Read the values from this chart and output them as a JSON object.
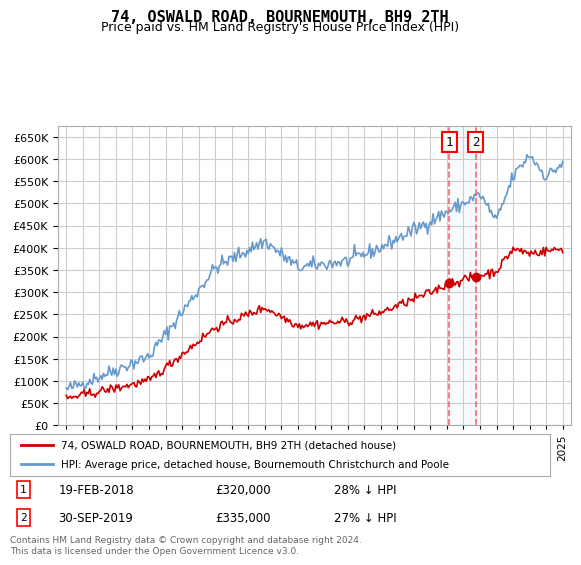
{
  "title": "74, OSWALD ROAD, BOURNEMOUTH, BH9 2TH",
  "subtitle": "Price paid vs. HM Land Registry's House Price Index (HPI)",
  "legend_line1": "74, OSWALD ROAD, BOURNEMOUTH, BH9 2TH (detached house)",
  "legend_line2": "HPI: Average price, detached house, Bournemouth Christchurch and Poole",
  "footer": "Contains HM Land Registry data © Crown copyright and database right 2024.\nThis data is licensed under the Open Government Licence v3.0.",
  "transactions": [
    {
      "label": "1",
      "date": "19-FEB-2018",
      "price": "£320,000",
      "hpi": "28% ↓ HPI",
      "year": 2018.13
    },
    {
      "label": "2",
      "date": "30-SEP-2019",
      "price": "£335,000",
      "hpi": "27% ↓ HPI",
      "year": 2019.75
    }
  ],
  "transaction_prices": [
    320000,
    335000
  ],
  "ylim": [
    0,
    675000
  ],
  "yticks": [
    0,
    50000,
    100000,
    150000,
    200000,
    250000,
    300000,
    350000,
    400000,
    450000,
    500000,
    550000,
    600000,
    650000
  ],
  "background_color": "#ffffff",
  "grid_color": "#cccccc",
  "red_color": "#cc0000",
  "blue_color": "#6699cc",
  "dashed_color": "#ff6666"
}
